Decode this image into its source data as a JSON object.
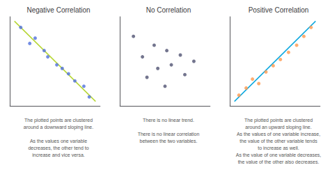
{
  "chart_data": [
    {
      "type": "scatter",
      "title": "Negative Correlation",
      "annotation": "The plotted points are clustered\naround a downward sloping line.\n\nAs the values one variable\ndecreases, the other tend to\nincrease and vice versa.",
      "xlim": [
        0,
        1
      ],
      "ylim": [
        0,
        1
      ],
      "tick_labels": false,
      "grid": false,
      "series": [
        {
          "type": "scatter",
          "x": [
            0.12,
            0.22,
            0.28,
            0.38,
            0.42,
            0.52,
            0.58,
            0.65,
            0.72,
            0.82,
            0.88
          ],
          "values": [
            0.88,
            0.7,
            0.76,
            0.62,
            0.55,
            0.46,
            0.42,
            0.36,
            0.28,
            0.22,
            0.1
          ]
        },
        {
          "type": "line",
          "x": [
            0.05,
            0.95
          ],
          "values": [
            0.95,
            0.05
          ]
        }
      ]
    },
    {
      "type": "scatter",
      "title": "No Correlation",
      "annotation": "There is no linear trend.\n\nThere is no linear correlation\nbetween the two variables.",
      "xlim": [
        0,
        1
      ],
      "ylim": [
        0,
        1
      ],
      "tick_labels": false,
      "grid": false,
      "series": [
        {
          "type": "scatter",
          "x": [
            0.15,
            0.25,
            0.38,
            0.42,
            0.52,
            0.57,
            0.67,
            0.72,
            0.82,
            0.5,
            0.3
          ],
          "values": [
            0.78,
            0.55,
            0.68,
            0.42,
            0.62,
            0.46,
            0.57,
            0.35,
            0.5,
            0.22,
            0.32
          ]
        }
      ]
    },
    {
      "type": "scatter",
      "title": "Positive Correlation",
      "annotation": "The plotted points are clustered\naround an upward sloping line.\nAs the values of one variable increase,\nthe value of the other variable tends\nto increase as well.\nAs the value of one variable decreases,\nthe value of the other also decreases.",
      "xlim": [
        0,
        1
      ],
      "ylim": [
        0,
        1
      ],
      "tick_labels": false,
      "grid": false,
      "series": [
        {
          "type": "scatter",
          "x": [
            0.1,
            0.18,
            0.25,
            0.32,
            0.4,
            0.48,
            0.56,
            0.65,
            0.74,
            0.82,
            0.9
          ],
          "values": [
            0.12,
            0.2,
            0.3,
            0.25,
            0.38,
            0.45,
            0.52,
            0.6,
            0.68,
            0.78,
            0.88
          ]
        },
        {
          "type": "line",
          "x": [
            0.05,
            0.95
          ],
          "values": [
            0.05,
            0.95
          ]
        }
      ]
    }
  ]
}
